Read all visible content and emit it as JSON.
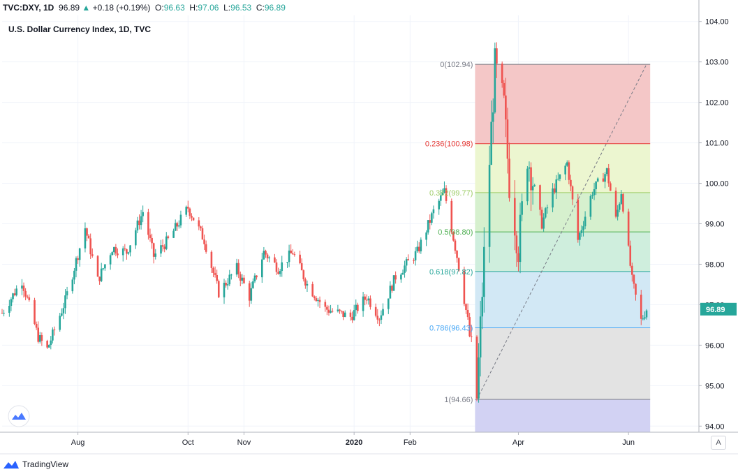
{
  "topbar": {
    "symbol": "TVC:DXY, 1D",
    "last": "96.89",
    "arrow": "▲",
    "change": "+0.18 (+0.19%)",
    "o_label": "O:",
    "o_val": "96.63",
    "h_label": "H:",
    "h_val": "97.06",
    "l_label": "L:",
    "l_val": "96.53",
    "c_label": "C:",
    "c_val": "96.89"
  },
  "footer": {
    "brand": "TradingView"
  },
  "scale_button": "A",
  "colors": {
    "up": "#26a69a",
    "down": "#ef5350",
    "last_price_bg": "#26a69a"
  },
  "chart_data": {
    "type": "candlestick",
    "title": "U.S. Dollar Currency Index, 1D, TVC",
    "x_ticks": [
      {
        "label": "Aug",
        "date": "2019-08-01",
        "bold": false
      },
      {
        "label": "Oct",
        "date": "2019-10-01",
        "bold": false
      },
      {
        "label": "Nov",
        "date": "2019-11-01",
        "bold": false
      },
      {
        "label": "2020",
        "date": "2020-01-01",
        "bold": true
      },
      {
        "label": "Feb",
        "date": "2020-02-01",
        "bold": false
      },
      {
        "label": "Apr",
        "date": "2020-04-01",
        "bold": false
      },
      {
        "label": "Jun",
        "date": "2020-06-01",
        "bold": false
      }
    ],
    "x_range": [
      "2019-06-20",
      "2020-07-10"
    ],
    "y_ticks": [
      "94.00",
      "95.00",
      "96.00",
      "97.00",
      "98.00",
      "99.00",
      "100.00",
      "101.00",
      "102.00",
      "103.00",
      "104.00"
    ],
    "ylim": [
      93.85,
      104.15
    ],
    "grid": true,
    "last_price": 96.89,
    "last_price_label": "96.89",
    "price_path": [
      [
        "2019-06-20",
        96.8
      ],
      [
        "2019-07-01",
        97.6
      ],
      [
        "2019-07-10",
        96.2
      ],
      [
        "2019-07-15",
        95.9
      ],
      [
        "2019-07-25",
        97.1
      ],
      [
        "2019-08-05",
        98.9
      ],
      [
        "2019-08-12",
        97.6
      ],
      [
        "2019-08-20",
        98.4
      ],
      [
        "2019-08-28",
        98.3
      ],
      [
        "2019-09-06",
        99.3
      ],
      [
        "2019-09-12",
        98.2
      ],
      [
        "2019-09-20",
        98.6
      ],
      [
        "2019-10-01",
        99.4
      ],
      [
        "2019-10-10",
        98.6
      ],
      [
        "2019-10-18",
        97.3
      ],
      [
        "2019-10-28",
        97.9
      ],
      [
        "2019-11-04",
        97.2
      ],
      [
        "2019-11-12",
        98.3
      ],
      [
        "2019-11-20",
        97.9
      ],
      [
        "2019-11-28",
        98.3
      ],
      [
        "2019-12-06",
        97.5
      ],
      [
        "2019-12-16",
        96.9
      ],
      [
        "2019-12-30",
        96.7
      ],
      [
        "2020-01-08",
        97.2
      ],
      [
        "2020-01-15",
        96.7
      ],
      [
        "2020-01-24",
        97.7
      ],
      [
        "2020-02-05",
        98.3
      ],
      [
        "2020-02-14",
        99.3
      ],
      [
        "2020-02-20",
        99.8
      ],
      [
        "2020-02-27",
        98.2
      ],
      [
        "2020-03-04",
        96.6
      ],
      [
        "2020-03-09",
        94.7
      ],
      [
        "2020-03-13",
        98.2
      ],
      [
        "2020-03-19",
        102.9
      ],
      [
        "2020-03-24",
        101.9
      ],
      [
        "2020-03-27",
        100.0
      ],
      [
        "2020-04-01",
        98.4
      ],
      [
        "2020-04-06",
        100.7
      ],
      [
        "2020-04-14",
        99.0
      ],
      [
        "2020-04-20",
        99.8
      ],
      [
        "2020-04-28",
        100.5
      ],
      [
        "2020-05-04",
        98.6
      ],
      [
        "2020-05-12",
        99.8
      ],
      [
        "2020-05-20",
        100.3
      ],
      [
        "2020-05-25",
        99.1
      ],
      [
        "2020-05-28",
        99.8
      ],
      [
        "2020-06-03",
        97.6
      ],
      [
        "2020-06-08",
        96.6
      ],
      [
        "2020-06-11",
        96.9
      ]
    ],
    "trend_line": {
      "from": [
        "2020-03-09",
        94.66
      ],
      "to": [
        "2020-06-11",
        102.94
      ]
    },
    "fibonacci": {
      "start": "2020-03-08",
      "end": "2020-06-13",
      "levels": [
        {
          "ratio": "0",
          "price": 102.94,
          "label": "0(102.94)",
          "line": "#787b86",
          "fill": "#f4c7c7"
        },
        {
          "ratio": "0.236",
          "price": 100.98,
          "label": "0.236(100.98)",
          "line": "#e53935",
          "fill": "#ecf6d0"
        },
        {
          "ratio": "0.382",
          "price": 99.77,
          "label": "0.382(99.77)",
          "line": "#9ccc65",
          "fill": "#d6f0ce"
        },
        {
          "ratio": "0.5",
          "price": 98.8,
          "label": "0.5(98.80)",
          "line": "#4caf50",
          "fill": "#cfeedd"
        },
        {
          "ratio": "0.618",
          "price": 97.82,
          "label": "0.618(97.82)",
          "line": "#26a69a",
          "fill": "#d2e8f5"
        },
        {
          "ratio": "0.786",
          "price": 96.43,
          "label": "0.786(96.43)",
          "line": "#42a5f5",
          "fill": "#e3e3e3"
        },
        {
          "ratio": "1",
          "price": 94.66,
          "label": "1(94.66)",
          "line": "#787b86",
          "fill": "#d2d2f3"
        }
      ]
    }
  }
}
